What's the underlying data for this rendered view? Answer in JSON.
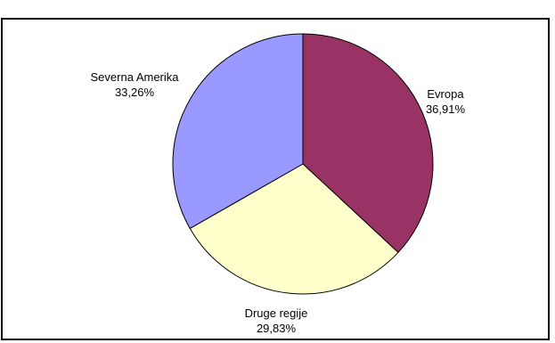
{
  "chart_data": {
    "type": "pie",
    "title": "",
    "categories": [
      "Evropa",
      "Druge regije",
      "Severna Amerika"
    ],
    "values": [
      36.91,
      29.83,
      33.26
    ],
    "value_labels": [
      "36,91%",
      "29,83%",
      "33,26%"
    ],
    "colors": [
      "#993366",
      "#ffffcc",
      "#9999ff"
    ],
    "legend": "none"
  }
}
